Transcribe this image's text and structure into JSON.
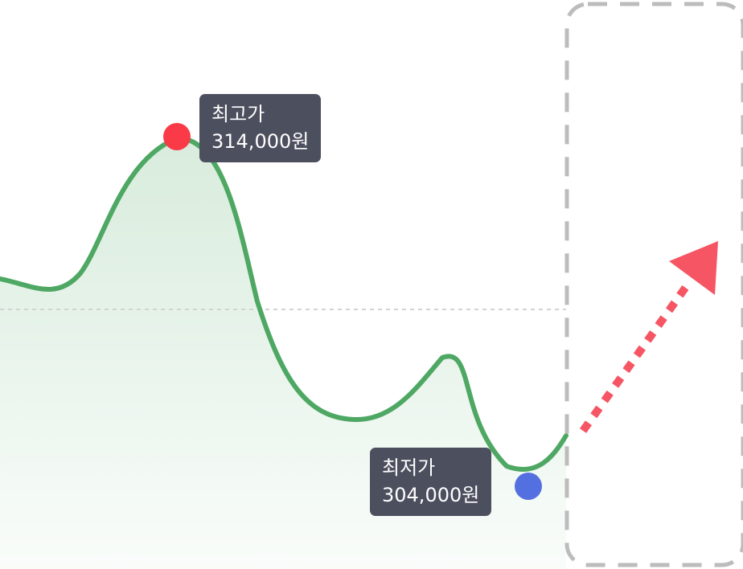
{
  "chart_data": {
    "type": "area",
    "line_color": "#4ea863",
    "fill_color": "#4ea863",
    "high_marker_color": "#fa3b47",
    "low_marker_color": "#5470e0",
    "arrow_color": "#f65563",
    "box_color": "#bcbcbc",
    "reference_line_color": "#d3d3d3",
    "annotations": {
      "high": {
        "title": "최고가",
        "value": "314,000원",
        "price": 314000
      },
      "low": {
        "title": "최저가",
        "value": "304,000원",
        "price": 304000
      }
    },
    "forecast": "up"
  }
}
